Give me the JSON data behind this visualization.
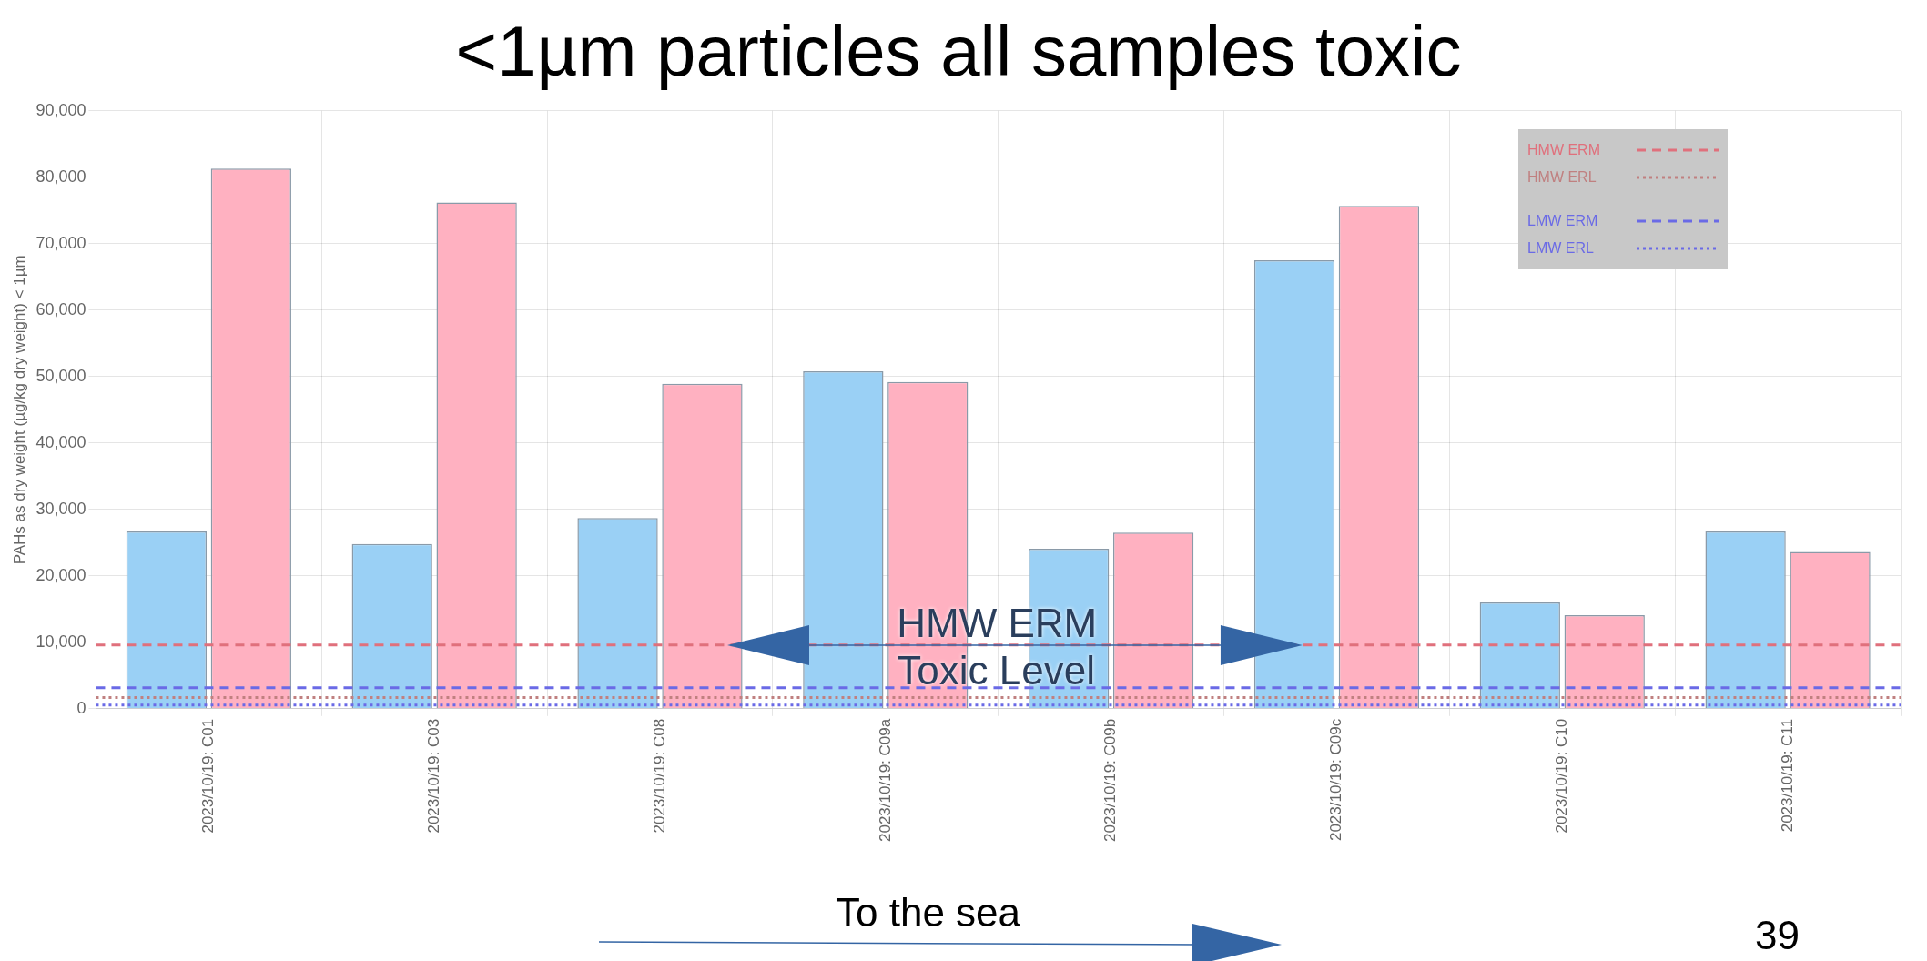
{
  "chart_data": {
    "type": "bar",
    "title": "<1µm particles all samples toxic",
    "ylabel": "PAHs as dry weight (µg/kg dry weight) < 1µm",
    "categories": [
      "2023/10/19: C01",
      "2023/10/19: C03",
      "2023/10/19: C08",
      "2023/10/19: C09a",
      "2023/10/19: C09b",
      "2023/10/19: C09c",
      "2023/10/19: C10",
      "2023/10/19: C11"
    ],
    "series": [
      {
        "color": "#9ad0f5",
        "values": [
          26700,
          24800,
          28700,
          50800,
          24100,
          67500,
          16000,
          26700
        ]
      },
      {
        "color": "#ffb1c1",
        "values": [
          81300,
          76200,
          48900,
          49200,
          26500,
          75700,
          14100,
          23600
        ]
      }
    ],
    "ylim": [
      0,
      90000
    ],
    "yticks": [
      0,
      {
        "value": 10000,
        "label": "10,000"
      },
      {
        "value": 20000,
        "label": "20,000"
      },
      {
        "value": 30000,
        "label": "30,000"
      },
      {
        "value": 40000,
        "label": "40,000"
      },
      {
        "value": 50000,
        "label": "50,000"
      },
      {
        "value": 60000,
        "label": "60,000"
      },
      {
        "value": 70000,
        "label": "70,000"
      },
      {
        "value": 80000,
        "label": "80,000"
      },
      {
        "value": 90000,
        "label": "90,000"
      }
    ],
    "grid": true,
    "legend": "top right",
    "ref_lines": [
      {
        "axis": "y",
        "value": 9600,
        "label": "HMW ERM",
        "color": "#e0707c",
        "line_style": "dashed"
      },
      {
        "axis": "y",
        "value": 1700,
        "label": "HMW ERL",
        "color": "#c08080",
        "line_style": "dotted"
      },
      {
        "axis": "y",
        "value": 3160,
        "label": "LMW ERM",
        "color": "#6a6ae6",
        "line_style": "dashed"
      },
      {
        "axis": "y",
        "value": 552,
        "label": "LMW ERL",
        "color": "#6a6ae6",
        "line_style": "dotted"
      }
    ],
    "annotations": [
      "HMW ERM Toxic Level",
      "To the sea",
      "39"
    ]
  }
}
